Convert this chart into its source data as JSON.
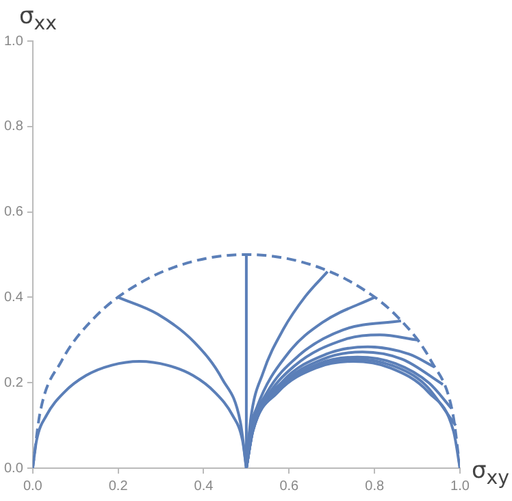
{
  "chart_data": {
    "type": "line",
    "xlabel": "σ$_{xy}$",
    "ylabel": "σ$_{xx}$",
    "xlim": [
      0,
      1
    ],
    "ylim": [
      0,
      1
    ],
    "xticks": [
      {
        "value": 0,
        "label": "0.0"
      },
      {
        "value": 0.2,
        "label": "0.2"
      },
      {
        "value": 0.4,
        "label": "0.4"
      },
      {
        "value": 0.6,
        "label": "0.6"
      },
      {
        "value": 0.8,
        "label": "0.8"
      },
      {
        "value": 1,
        "label": "1.0"
      }
    ],
    "yticks": [
      {
        "value": 0,
        "label": "0.0"
      },
      {
        "value": 0.2,
        "label": "0.2"
      },
      {
        "value": 0.4,
        "label": "0.4"
      },
      {
        "value": 0.6,
        "label": "0.6"
      },
      {
        "value": 0.8,
        "label": "0.8"
      },
      {
        "value": 1,
        "label": "1.0"
      }
    ],
    "grid": false,
    "legend": false,
    "marker": "none",
    "series": [
      {
        "color": "#5b7fb8",
        "line_style": "dashed",
        "x": [
          0,
          0.017,
          0.067,
          0.146,
          0.25,
          0.371,
          0.5,
          0.629,
          0.75,
          0.854,
          0.933,
          0.983,
          1
        ],
        "values": [
          0,
          0.129,
          0.25,
          0.354,
          0.433,
          0.483,
          0.5,
          0.483,
          0.433,
          0.354,
          0.25,
          0.129,
          0
        ]
      },
      {
        "color": "#5b7fb8",
        "x": [
          0,
          0.009,
          0.033,
          0.073,
          0.125,
          0.185,
          0.25,
          0.315,
          0.375,
          0.427,
          0.467,
          0.491,
          0.5
        ],
        "values": [
          0,
          0.065,
          0.125,
          0.177,
          0.217,
          0.241,
          0.25,
          0.241,
          0.217,
          0.177,
          0.125,
          0.065,
          0
        ]
      },
      {
        "color": "#5b7fb8",
        "x": [
          0.5,
          0.5
        ],
        "values": [
          0,
          0.5
        ]
      },
      {
        "color": "#5b7fb8",
        "x": [
          0.2,
          0.292,
          0.378,
          0.444,
          0.486,
          0.5
        ],
        "values": [
          0.4,
          0.361,
          0.295,
          0.208,
          0.108,
          0
        ]
      },
      {
        "color": "#5b7fb8",
        "x": [
          0.5,
          0.51,
          0.539,
          0.587,
          0.638,
          0.69
        ],
        "values": [
          0,
          0.113,
          0.223,
          0.326,
          0.402,
          0.46
        ]
      },
      {
        "color": "#5b7fb8",
        "x": [
          0.5,
          0.506,
          0.525,
          0.597,
          0.678,
          0.8
        ],
        "values": [
          0,
          0.072,
          0.143,
          0.268,
          0.341,
          0.4
        ]
      },
      {
        "color": "#5b7fb8",
        "x": [
          0.5,
          0.512,
          0.546,
          0.623,
          0.727,
          0.862
        ],
        "values": [
          0,
          0.089,
          0.173,
          0.264,
          0.324,
          0.345
        ]
      },
      {
        "color": "#5b7fb8",
        "x": [
          0.5,
          0.511,
          0.542,
          0.612,
          0.732,
          0.8125,
          0.9
        ],
        "values": [
          0,
          0.081,
          0.156,
          0.239,
          0.302,
          0.312,
          0.3
        ]
      },
      {
        "color": "#5b7fb8",
        "x": [
          0.5,
          0.517,
          0.583,
          0.687,
          0.784,
          0.881,
          0.94
        ],
        "values": [
          0,
          0.097,
          0.201,
          0.267,
          0.284,
          0.267,
          0.237
        ]
      },
      {
        "color": "#5b7fb8",
        "x": [
          0.5,
          0.516,
          0.58,
          0.679,
          0.772,
          0.865,
          0.96
        ],
        "values": [
          0,
          0.093,
          0.192,
          0.255,
          0.272,
          0.255,
          0.196
        ]
      },
      {
        "color": "#5b7fb8",
        "x": [
          0.5,
          0.516,
          0.576,
          0.671,
          0.76,
          0.849,
          0.928,
          0.98
        ],
        "values": [
          0,
          0.089,
          0.184,
          0.245,
          0.26,
          0.245,
          0.199,
          0.14
        ]
      },
      {
        "color": "#5b7fb8",
        "x": [
          0.5,
          0.515,
          0.575,
          0.668,
          0.755,
          0.842,
          0.919,
          0.99
        ],
        "values": [
          0,
          0.087,
          0.18,
          0.24,
          0.255,
          0.24,
          0.195,
          0.1
        ]
      },
      {
        "color": "#5b7fb8",
        "x": [
          0.5,
          0.515,
          0.573,
          0.664,
          0.75,
          0.836,
          0.927,
          0.985,
          1
        ],
        "values": [
          0,
          0.086,
          0.177,
          0.235,
          0.25,
          0.235,
          0.177,
          0.086,
          0
        ]
      }
    ]
  }
}
